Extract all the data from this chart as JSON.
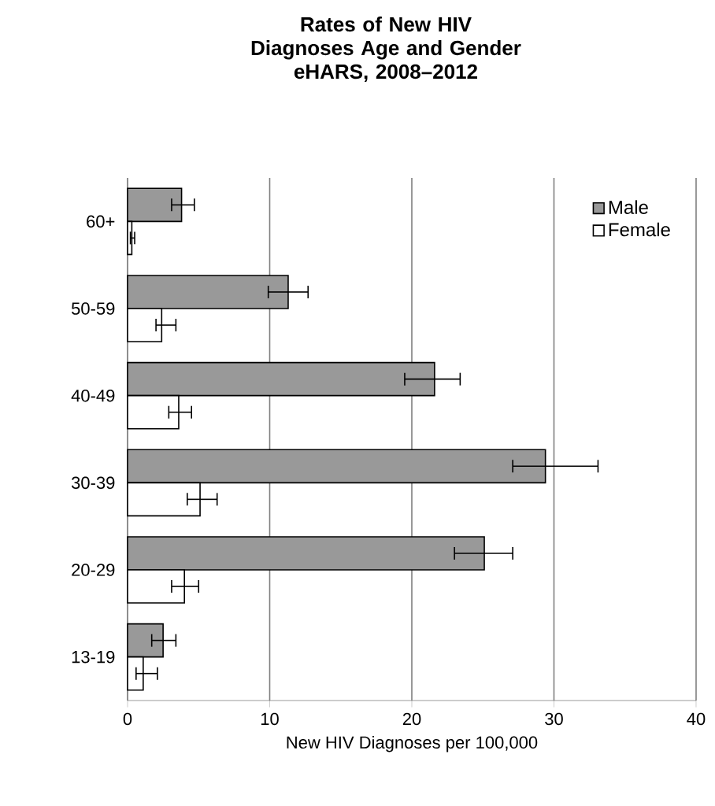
{
  "chart_data": {
    "type": "bar",
    "orientation": "horizontal",
    "title": "Rates of New HIV Diagnoses Age and Gender",
    "subtitle": "eHARS, 2008–2012",
    "xlabel": "New HIV Diagnoses per 100,000",
    "categories": [
      "60+",
      "50-59",
      "40-49",
      "30-39",
      "20-29",
      "13-19"
    ],
    "series": [
      {
        "name": "Male",
        "color": "#999999",
        "values": [
          3.8,
          11.3,
          21.6,
          29.4,
          25.1,
          2.5
        ],
        "errors": [
          [
            3.1,
            4.7
          ],
          [
            9.9,
            12.7
          ],
          [
            19.5,
            23.4
          ],
          [
            27.1,
            33.1
          ],
          [
            23.0,
            27.1
          ],
          [
            1.7,
            3.4
          ]
        ]
      },
      {
        "name": "Female",
        "color": "#ffffff",
        "values": [
          0.3,
          2.4,
          3.6,
          5.1,
          4.0,
          1.1
        ],
        "errors": [
          [
            0.2,
            0.5
          ],
          [
            2.0,
            3.4
          ],
          [
            2.9,
            4.5
          ],
          [
            4.2,
            6.3
          ],
          [
            3.1,
            5.0
          ],
          [
            0.6,
            2.1
          ]
        ]
      }
    ],
    "xlim": [
      0,
      40
    ],
    "xticks": [
      0,
      10,
      20,
      30,
      40
    ],
    "grid": "x",
    "legend": "top right"
  }
}
